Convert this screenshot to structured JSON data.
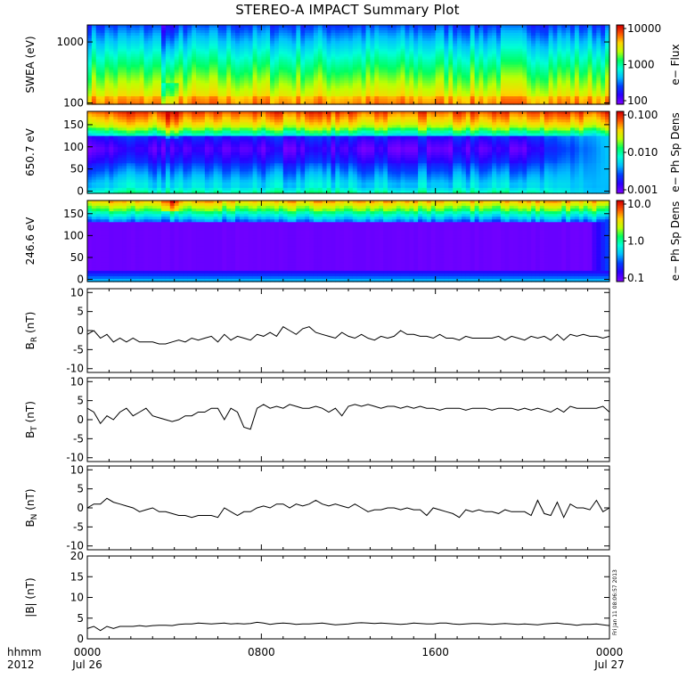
{
  "chart_data": [
    {
      "type": "heatmap",
      "title": "STEREO-A IMPACT Summary Plot",
      "ylabel": "SWEA (eV)",
      "y_scale": "log",
      "ylim": [
        95,
        1900
      ],
      "yticks": [
        "1000",
        "100"
      ],
      "colorbar": {
        "label": "e− Flux",
        "scale": "log",
        "ticks": [
          "10000",
          "1000",
          "100"
        ]
      }
    },
    {
      "type": "heatmap",
      "ylabel": "650.7 eV",
      "ylim": [
        -5,
        180
      ],
      "yticks": [
        "150",
        "100",
        "50",
        "0"
      ],
      "colorbar": {
        "label": "e− Ph Sp Dens",
        "scale": "log",
        "ticks": [
          "0.100",
          "0.010",
          "0.001"
        ]
      }
    },
    {
      "type": "heatmap",
      "ylabel": "246.6 eV",
      "ylim": [
        -5,
        180
      ],
      "yticks": [
        "150",
        "100",
        "50",
        "0"
      ],
      "colorbar": {
        "label": "e− Ph Sp Dens",
        "scale": "log",
        "ticks": [
          "10.0",
          "1.0",
          "0.1"
        ]
      }
    },
    {
      "type": "line",
      "ylabel": "B_R (nT)",
      "ylim": [
        -11,
        11
      ],
      "yticks": [
        "10",
        "5",
        "0",
        "-5",
        "-10"
      ],
      "x_hours": [
        0,
        0.3,
        0.6,
        0.9,
        1.2,
        1.5,
        1.8,
        2.1,
        2.4,
        2.7,
        3.0,
        3.3,
        3.6,
        3.9,
        4.2,
        4.5,
        4.8,
        5.1,
        5.4,
        5.7,
        6.0,
        6.3,
        6.6,
        6.9,
        7.2,
        7.5,
        7.8,
        8.1,
        8.4,
        8.7,
        9.0,
        9.3,
        9.6,
        9.9,
        10.2,
        10.5,
        10.8,
        11.1,
        11.4,
        11.7,
        12.0,
        12.3,
        12.6,
        12.9,
        13.2,
        13.5,
        13.8,
        14.1,
        14.4,
        14.7,
        15.0,
        15.3,
        15.6,
        15.9,
        16.2,
        16.5,
        16.8,
        17.1,
        17.4,
        17.7,
        18.0,
        18.3,
        18.6,
        18.9,
        19.2,
        19.5,
        19.8,
        20.1,
        20.4,
        20.7,
        21.0,
        21.3,
        21.6,
        21.9,
        22.2,
        22.5,
        22.8,
        23.1,
        23.4,
        23.7,
        24.0
      ],
      "series": [
        {
          "values": [
            -1,
            0,
            -2,
            -1,
            -3,
            -2,
            -3,
            -2,
            -3,
            -3,
            -3,
            -3.5,
            -3.5,
            -3,
            -2.5,
            -3,
            -2,
            -2.5,
            -2,
            -1.5,
            -3,
            -1,
            -2.5,
            -1.5,
            -2,
            -2.5,
            -1,
            -1.5,
            -0.5,
            -1.5,
            1,
            0,
            -1,
            0.5,
            1,
            -0.5,
            -1,
            -1.5,
            -2,
            -0.5,
            -1.5,
            -2,
            -1,
            -2,
            -2.5,
            -1.5,
            -2,
            -1.5,
            0,
            -1,
            -1,
            -1.5,
            -1.5,
            -2,
            -1,
            -2,
            -2,
            -2.5,
            -1.5,
            -2,
            -2,
            -2,
            -2,
            -1.5,
            -2.5,
            -1.5,
            -2,
            -2.5,
            -1.5,
            -2,
            -1.5,
            -2.5,
            -1,
            -2.5,
            -1,
            -1.5,
            -1,
            -1.5,
            -1.5,
            -2,
            -1.5
          ]
        }
      ]
    },
    {
      "type": "line",
      "ylabel": "B_T (nT)",
      "ylim": [
        -11,
        11
      ],
      "yticks": [
        "10",
        "5",
        "0",
        "-5",
        "-10"
      ],
      "x_hours": [
        0,
        0.3,
        0.6,
        0.9,
        1.2,
        1.5,
        1.8,
        2.1,
        2.4,
        2.7,
        3.0,
        3.3,
        3.6,
        3.9,
        4.2,
        4.5,
        4.8,
        5.1,
        5.4,
        5.7,
        6.0,
        6.3,
        6.6,
        6.9,
        7.2,
        7.5,
        7.8,
        8.1,
        8.4,
        8.7,
        9.0,
        9.3,
        9.6,
        9.9,
        10.2,
        10.5,
        10.8,
        11.1,
        11.4,
        11.7,
        12.0,
        12.3,
        12.6,
        12.9,
        13.2,
        13.5,
        13.8,
        14.1,
        14.4,
        14.7,
        15.0,
        15.3,
        15.6,
        15.9,
        16.2,
        16.5,
        16.8,
        17.1,
        17.4,
        17.7,
        18.0,
        18.3,
        18.6,
        18.9,
        19.2,
        19.5,
        19.8,
        20.1,
        20.4,
        20.7,
        21.0,
        21.3,
        21.6,
        21.9,
        22.2,
        22.5,
        22.8,
        23.1,
        23.4,
        23.7,
        24.0
      ],
      "series": [
        {
          "values": [
            3,
            2,
            -1,
            1,
            0,
            2,
            3,
            1,
            2,
            3,
            1,
            0.5,
            0,
            -0.5,
            0,
            1,
            1,
            2,
            2,
            3,
            3,
            0,
            3,
            2,
            -2,
            -2.5,
            3,
            4,
            3,
            3.5,
            3,
            4,
            3.5,
            3,
            3,
            3.5,
            3,
            2,
            3,
            1,
            3.5,
            4,
            3.5,
            4,
            3.5,
            3,
            3.5,
            3.5,
            3,
            3.5,
            3,
            3.5,
            3,
            3,
            2.5,
            3,
            3,
            3,
            2.5,
            3,
            3,
            3,
            2.5,
            3,
            3,
            3,
            2.5,
            3,
            2.5,
            3,
            2.5,
            2,
            3,
            2,
            3.5,
            3,
            3,
            3,
            3,
            3.5,
            2
          ]
        }
      ]
    },
    {
      "type": "line",
      "ylabel": "B_N (nT)",
      "ylim": [
        -11,
        11
      ],
      "yticks": [
        "10",
        "5",
        "0",
        "-5",
        "-10"
      ],
      "x_hours": [
        0,
        0.3,
        0.6,
        0.9,
        1.2,
        1.5,
        1.8,
        2.1,
        2.4,
        2.7,
        3.0,
        3.3,
        3.6,
        3.9,
        4.2,
        4.5,
        4.8,
        5.1,
        5.4,
        5.7,
        6.0,
        6.3,
        6.6,
        6.9,
        7.2,
        7.5,
        7.8,
        8.1,
        8.4,
        8.7,
        9.0,
        9.3,
        9.6,
        9.9,
        10.2,
        10.5,
        10.8,
        11.1,
        11.4,
        11.7,
        12.0,
        12.3,
        12.6,
        12.9,
        13.2,
        13.5,
        13.8,
        14.1,
        14.4,
        14.7,
        15.0,
        15.3,
        15.6,
        15.9,
        16.2,
        16.5,
        16.8,
        17.1,
        17.4,
        17.7,
        18.0,
        18.3,
        18.6,
        18.9,
        19.2,
        19.5,
        19.8,
        20.1,
        20.4,
        20.7,
        21.0,
        21.3,
        21.6,
        21.9,
        22.2,
        22.5,
        22.8,
        23.1,
        23.4,
        23.7,
        24.0
      ],
      "series": [
        {
          "values": [
            0,
            1,
            1,
            2.5,
            1.5,
            1,
            0.5,
            0,
            -1,
            -0.5,
            0,
            -1,
            -1,
            -1.5,
            -2,
            -2,
            -2.5,
            -2,
            -2,
            -2,
            -2.5,
            0,
            -1,
            -2,
            -1,
            -1,
            0,
            0.5,
            0,
            1,
            1,
            0,
            1,
            0.5,
            1,
            2,
            1,
            0.5,
            1,
            0.5,
            0,
            1,
            0,
            -1,
            -0.5,
            -0.5,
            0,
            0,
            -0.5,
            0,
            -0.5,
            -0.5,
            -2,
            0,
            -0.5,
            -1,
            -1.5,
            -2.5,
            -0.5,
            -1,
            -0.5,
            -1,
            -1,
            -1.5,
            -0.5,
            -1,
            -1,
            -1,
            -2,
            2,
            -1.5,
            -2,
            1.5,
            -2.5,
            1,
            0,
            0,
            -0.5,
            2,
            -1,
            0
          ]
        }
      ]
    },
    {
      "type": "line",
      "ylabel": "|B| (nT)",
      "ylim": [
        0,
        20
      ],
      "yticks": [
        "20",
        "15",
        "10",
        "5",
        "0"
      ],
      "annotations": [
        "Fri Jan 11 08:06:57 2013"
      ],
      "x_hours": [
        0,
        0.3,
        0.6,
        0.9,
        1.2,
        1.5,
        1.8,
        2.1,
        2.4,
        2.7,
        3.0,
        3.3,
        3.6,
        3.9,
        4.2,
        4.5,
        4.8,
        5.1,
        5.4,
        5.7,
        6.0,
        6.3,
        6.6,
        6.9,
        7.2,
        7.5,
        7.8,
        8.1,
        8.4,
        8.7,
        9.0,
        9.3,
        9.6,
        9.9,
        10.2,
        10.5,
        10.8,
        11.1,
        11.4,
        11.7,
        12.0,
        12.3,
        12.6,
        12.9,
        13.2,
        13.5,
        13.8,
        14.1,
        14.4,
        14.7,
        15.0,
        15.3,
        15.6,
        15.9,
        16.2,
        16.5,
        16.8,
        17.1,
        17.4,
        17.7,
        18.0,
        18.3,
        18.6,
        18.9,
        19.2,
        19.5,
        19.8,
        20.1,
        20.4,
        20.7,
        21.0,
        21.3,
        21.6,
        21.9,
        22.2,
        22.5,
        22.8,
        23.1,
        23.4,
        23.7,
        24.0
      ],
      "series": [
        {
          "values": [
            2.5,
            3,
            2,
            3,
            2.5,
            3,
            3,
            3,
            3.2,
            3,
            3.2,
            3.3,
            3.3,
            3.2,
            3.5,
            3.6,
            3.6,
            3.8,
            3.7,
            3.6,
            3.7,
            3.8,
            3.6,
            3.7,
            3.6,
            3.7,
            4,
            3.8,
            3.5,
            3.7,
            3.8,
            3.7,
            3.5,
            3.6,
            3.6,
            3.7,
            3.8,
            3.6,
            3.4,
            3.5,
            3.6,
            3.8,
            3.9,
            3.8,
            3.7,
            3.8,
            3.7,
            3.6,
            3.5,
            3.6,
            3.8,
            3.7,
            3.6,
            3.6,
            3.8,
            3.8,
            3.6,
            3.5,
            3.6,
            3.7,
            3.7,
            3.6,
            3.5,
            3.6,
            3.7,
            3.6,
            3.5,
            3.6,
            3.5,
            3.4,
            3.6,
            3.7,
            3.8,
            3.6,
            3.5,
            3.3,
            3.5,
            3.5,
            3.6,
            3.4,
            3.2
          ]
        }
      ]
    }
  ],
  "x_axis": {
    "row_label": "hhmm",
    "year_label": "2012",
    "ticks": [
      {
        "hour": 0,
        "time": "0000",
        "date": "Jul 26"
      },
      {
        "hour": 8,
        "time": "0800",
        "date": ""
      },
      {
        "hour": 16,
        "time": "1600",
        "date": ""
      },
      {
        "hour": 24,
        "time": "0000",
        "date": "Jul 27"
      }
    ]
  },
  "colors": {
    "spectrogram": [
      "#7a00ff",
      "#2a00ff",
      "#0040ff",
      "#00bfff",
      "#00ffd8",
      "#00ff60",
      "#bfff00",
      "#ffd400",
      "#ff5a00",
      "#d40000"
    ],
    "line": "#000000",
    "frame": "#000000"
  }
}
